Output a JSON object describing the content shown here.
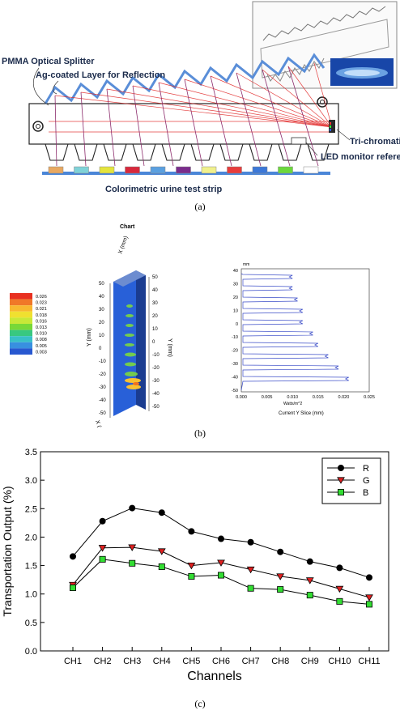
{
  "panel_a": {
    "label_splitter": "PMMA Optical Splitter",
    "label_ag_layer": "Ag-coated Layer for Reflection",
    "label_led": "Tri-chromatic LED",
    "label_monitor": "LED monitor reference",
    "label_strip": "Colorimetric urine test strip",
    "strip_colors": [
      "#e8a860",
      "#7fd2d8",
      "#e4e43c",
      "#d8283c",
      "#5aa0e0",
      "#7a2c8c",
      "#f0f08c",
      "#e83c3c",
      "#3c78d8",
      "#6cd83c",
      "#ffffff"
    ],
    "caption": "(a)"
  },
  "panel_b": {
    "title": "Chart",
    "legend_values": [
      "0.026",
      "0.023",
      "0.021",
      "0.018",
      "0.016",
      "0.013",
      "0.010",
      "0.008",
      "0.005",
      "0.003"
    ],
    "legend_colors": [
      "#e83020",
      "#f07828",
      "#f8b830",
      "#f0e030",
      "#c8e838",
      "#78d838",
      "#38c880",
      "#38c0c8",
      "#3890e0",
      "#2858d0"
    ],
    "axis_x": "X (mm)",
    "axis_y": "Y (mm)",
    "ticks_3d_y": [
      "50",
      "40",
      "30",
      "20",
      "10",
      "0",
      "-10",
      "-20",
      "-30",
      "-40",
      "-50"
    ],
    "slice_ylabel": "mm",
    "slice_yticks": [
      "40",
      "30",
      "20",
      "10",
      "0",
      "-10",
      "-20",
      "-30",
      "-40",
      "-50"
    ],
    "slice_xticks": [
      "0.000",
      "0.005",
      "0.010",
      "0.015",
      "0.020",
      "0.025"
    ],
    "slice_xunit": "Watts/m^2",
    "slice_xlabel": "Current Y Slice (mm)",
    "caption": "(b)"
  },
  "chart_data": {
    "type": "line",
    "categories": [
      "CH1",
      "CH2",
      "CH3",
      "CH4",
      "CH5",
      "CH6",
      "CH7",
      "CH8",
      "CH9",
      "CH10",
      "CH11"
    ],
    "series": [
      {
        "name": "R",
        "values": [
          1.66,
          2.28,
          2.51,
          2.43,
          2.1,
          1.97,
          1.91,
          1.74,
          1.57,
          1.46,
          1.29
        ],
        "color": "#000000",
        "marker": "circle"
      },
      {
        "name": "G",
        "values": [
          1.16,
          1.81,
          1.82,
          1.75,
          1.5,
          1.55,
          1.43,
          1.31,
          1.24,
          1.09,
          0.94
        ],
        "color": "#e02020",
        "marker": "triangle-down"
      },
      {
        "name": "B",
        "values": [
          1.11,
          1.61,
          1.54,
          1.48,
          1.31,
          1.33,
          1.1,
          1.08,
          0.98,
          0.87,
          0.82
        ],
        "color": "#33dd33",
        "marker": "square"
      }
    ],
    "ylim": [
      0.0,
      3.5
    ],
    "yticks": [
      "0.0",
      "0.5",
      "1.0",
      "1.5",
      "2.0",
      "2.5",
      "3.0",
      "3.5"
    ],
    "xlabel": "Channels",
    "ylabel": "Transportation Output (%)",
    "legend_position": "top-right",
    "grid": false
  },
  "panel_c": {
    "caption": "(c)"
  }
}
